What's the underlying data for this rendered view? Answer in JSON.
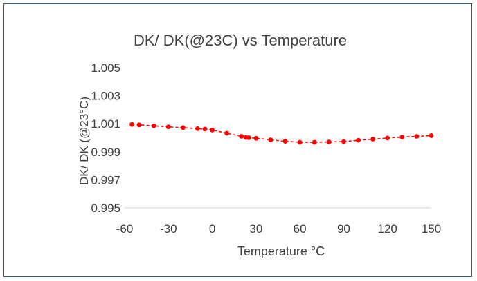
{
  "chart_data": {
    "type": "scatter",
    "title": "DK/ DK(@23C) vs Temperature",
    "xlabel": "Temperature °C",
    "ylabel": "DK/ DK (@23°C)",
    "xlim": [
      -60,
      150
    ],
    "ylim": [
      0.995,
      1.005
    ],
    "xticks": [
      "-60",
      "-30",
      "0",
      "30",
      "60",
      "90",
      "120",
      "150"
    ],
    "yticks": [
      "1.005",
      "1.003",
      "1.001",
      "0.999",
      "0.997",
      "0.995"
    ],
    "grid": false,
    "legend": "none",
    "marker_color": "#ff0000",
    "series": [
      {
        "points": [
          {
            "x": -55,
            "y": 1.00095
          },
          {
            "x": -50,
            "y": 1.00092
          },
          {
            "x": -40,
            "y": 1.00085
          },
          {
            "x": -30,
            "y": 1.00078
          },
          {
            "x": -20,
            "y": 1.00072
          },
          {
            "x": -10,
            "y": 1.00065
          },
          {
            "x": -5,
            "y": 1.00062
          },
          {
            "x": 0,
            "y": 1.00055
          },
          {
            "x": 10,
            "y": 1.00032
          },
          {
            "x": 20,
            "y": 1.0001
          },
          {
            "x": 23,
            "y": 1.00002
          },
          {
            "x": 25,
            "y": 1.0
          },
          {
            "x": 30,
            "y": 0.99996
          },
          {
            "x": 40,
            "y": 0.99985
          },
          {
            "x": 50,
            "y": 0.99975
          },
          {
            "x": 60,
            "y": 0.99968
          },
          {
            "x": 70,
            "y": 0.99968
          },
          {
            "x": 80,
            "y": 0.9997
          },
          {
            "x": 90,
            "y": 0.99973
          },
          {
            "x": 100,
            "y": 0.99982
          },
          {
            "x": 110,
            "y": 0.9999
          },
          {
            "x": 120,
            "y": 0.99998
          },
          {
            "x": 130,
            "y": 1.00005
          },
          {
            "x": 140,
            "y": 1.0001
          },
          {
            "x": 150,
            "y": 1.00015
          }
        ]
      }
    ]
  }
}
